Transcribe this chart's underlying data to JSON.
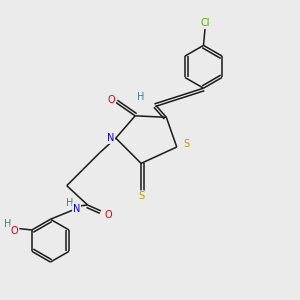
{
  "background_color": "#ebebeb",
  "figsize": [
    3.0,
    3.0
  ],
  "dpi": 100,
  "lw": 1.1,
  "fontsize": 7.0,
  "colors": {
    "bond": "#1a1a1a",
    "Cl": "#5aaa00",
    "S": "#b8a000",
    "O": "#dd0000",
    "N": "#0000cc",
    "H": "#408080"
  }
}
